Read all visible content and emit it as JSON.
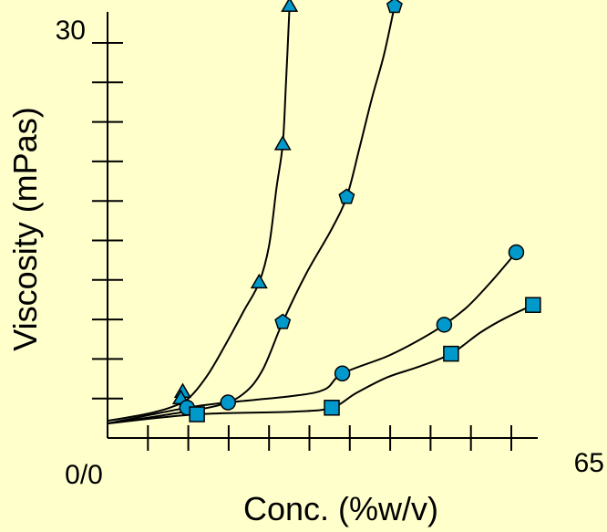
{
  "colors": {
    "background": "#FFFFCC",
    "marker_fill": "#0099CC",
    "marker_stroke": "#000000",
    "line": "#000000"
  },
  "chart_data": {
    "type": "line",
    "title": "",
    "xlabel": "Conc. (%w/v)",
    "ylabel": "Viscosity (mPas)",
    "origin_label": "0/0",
    "x_max_label": "65",
    "y_max_label": "30",
    "xlim": [
      0,
      65
    ],
    "ylim": [
      0,
      30
    ],
    "x_tick_count": 10,
    "y_tick_count": 10,
    "grid": false,
    "legend": "none",
    "series": [
      {
        "marker": "triangle",
        "points": [
          [
            12.1,
            3.5
          ],
          [
            11.8,
            3.0
          ],
          [
            24.4,
            11.8
          ],
          [
            28.2,
            22.3
          ],
          [
            29.3,
            32.8
          ]
        ],
        "curve": [
          [
            0,
            1.3
          ],
          [
            6,
            1.8
          ],
          [
            10,
            2.3
          ],
          [
            13,
            3.0
          ],
          [
            16,
            4.7
          ],
          [
            19,
            7.1
          ],
          [
            22,
            9.7
          ],
          [
            24.4,
            11.8
          ],
          [
            26,
            14.6
          ],
          [
            27.2,
            19.0
          ],
          [
            28.2,
            22.3
          ],
          [
            28.7,
            26.7
          ],
          [
            29.3,
            32.8
          ]
        ]
      },
      {
        "marker": "pentagon",
        "points": [
          [
            28.2,
            8.8
          ],
          [
            38.5,
            18.3
          ],
          [
            46.2,
            32.8
          ]
        ],
        "curve": [
          [
            0,
            1.1
          ],
          [
            10,
            1.8
          ],
          [
            18,
            2.5
          ],
          [
            22,
            3.4
          ],
          [
            25,
            5.2
          ],
          [
            28.2,
            8.8
          ],
          [
            32,
            12.5
          ],
          [
            36,
            15.8
          ],
          [
            38.5,
            18.3
          ],
          [
            40.5,
            21.9
          ],
          [
            42.5,
            25.7
          ],
          [
            44.5,
            29.1
          ],
          [
            46.2,
            32.8
          ]
        ]
      },
      {
        "marker": "circle",
        "points": [
          [
            12.8,
            2.3
          ],
          [
            19.4,
            2.7
          ],
          [
            37.8,
            4.9
          ],
          [
            54.2,
            8.6
          ],
          [
            65.8,
            14.1
          ]
        ],
        "curve": [
          [
            0,
            1.1
          ],
          [
            12.8,
            2.3
          ],
          [
            19.4,
            2.7
          ],
          [
            30,
            3.2
          ],
          [
            35,
            3.7
          ],
          [
            37.8,
            4.9
          ],
          [
            45,
            6.2
          ],
          [
            50,
            7.4
          ],
          [
            54.2,
            8.6
          ],
          [
            58,
            10.0
          ],
          [
            62,
            12.0
          ],
          [
            65.8,
            14.1
          ]
        ]
      },
      {
        "marker": "square",
        "points": [
          [
            14.4,
            1.8
          ],
          [
            36.1,
            2.3
          ],
          [
            55.3,
            6.4
          ],
          [
            68.5,
            10.1
          ]
        ],
        "curve": [
          [
            0,
            1.1
          ],
          [
            14.4,
            1.8
          ],
          [
            30,
            2.0
          ],
          [
            36.1,
            2.3
          ],
          [
            40,
            3.4
          ],
          [
            45,
            4.6
          ],
          [
            50,
            5.4
          ],
          [
            55.3,
            6.4
          ],
          [
            60,
            8.0
          ],
          [
            64,
            9.1
          ],
          [
            68.5,
            10.1
          ]
        ]
      }
    ]
  }
}
